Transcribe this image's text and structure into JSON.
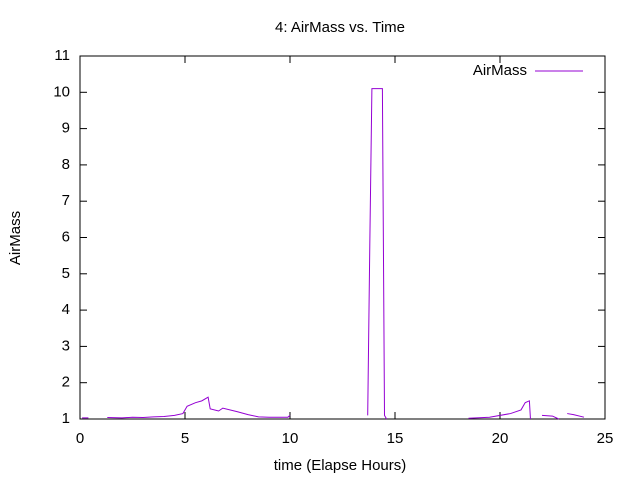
{
  "chart_data": {
    "type": "line",
    "title": "4: AirMass vs. Time",
    "x_label": "time (Elapse Hours)",
    "y_label": "AirMass",
    "x": [
      0.1,
      0.4,
      0.8,
      1.3,
      2.0,
      2.5,
      3.0,
      3.5,
      4.0,
      4.5,
      4.9,
      5.1,
      5.5,
      5.8,
      6.1,
      6.2,
      6.6,
      6.8,
      7.5,
      8.0,
      8.5,
      9.0,
      9.5,
      9.9,
      10.0,
      11.8,
      13.7,
      13.8,
      13.9,
      14.4,
      14.5,
      14.6,
      16.5,
      18.5,
      19.5,
      20.5,
      21.0,
      21.2,
      21.4,
      21.45,
      21.7,
      22.0,
      22.5,
      22.8,
      23.0,
      23.2,
      23.5,
      24.0
    ],
    "series": [
      {
        "name": "AirMass",
        "color": "#9400d3",
        "values": [
          1.03,
          1.03,
          null,
          1.04,
          1.03,
          1.05,
          1.04,
          1.06,
          1.07,
          1.1,
          1.15,
          1.35,
          1.45,
          1.5,
          1.6,
          1.28,
          1.22,
          1.3,
          1.2,
          1.12,
          1.06,
          1.05,
          1.05,
          1.05,
          1.1,
          null,
          1.1,
          5.8,
          10.1,
          10.1,
          1.1,
          1.0,
          null,
          1.02,
          1.05,
          1.15,
          1.25,
          1.45,
          1.5,
          1.0,
          null,
          1.1,
          1.08,
          1.0,
          null,
          1.15,
          1.12,
          1.05
        ]
      }
    ],
    "xlim": [
      0,
      25
    ],
    "xticks": [
      0,
      5,
      10,
      15,
      20,
      25
    ],
    "ylim": [
      1,
      11
    ],
    "yticks": [
      1,
      2,
      3,
      4,
      5,
      6,
      7,
      8,
      9,
      10,
      11
    ],
    "grid": false,
    "legend": "top-right"
  }
}
